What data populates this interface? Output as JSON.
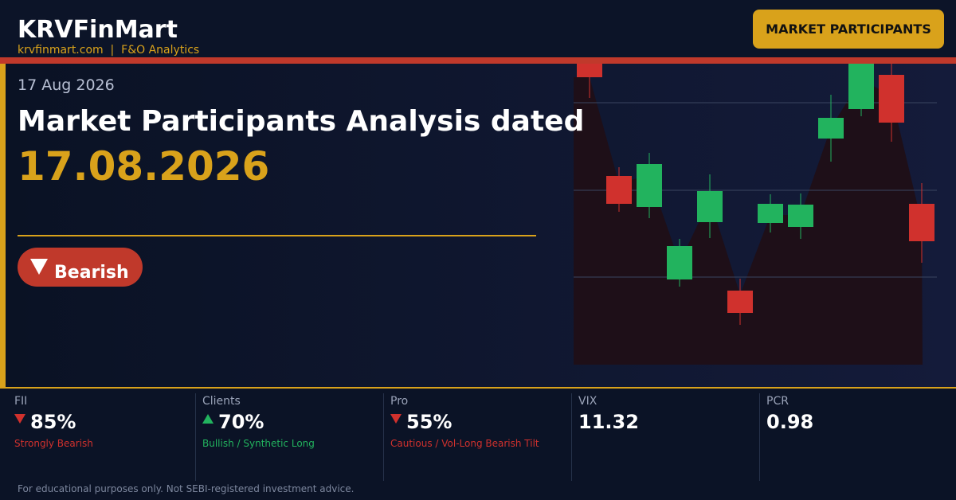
{
  "header": {
    "brand": "KRVFinMart",
    "subtitle": "krvfinmart.com  |  F&O Analytics",
    "button": "MARKET PARTICIPANTS"
  },
  "hero": {
    "date": "17 Aug 2026",
    "headline": "Market Participants Analysis dated",
    "headline_date": "17.08.2026",
    "badge": "Bearish"
  },
  "stats": [
    {
      "label": "FII",
      "value": "85%",
      "note": "Strongly Bearish"
    },
    {
      "label": "Clients",
      "value": "70%",
      "note": "Bullish / Synthetic Long"
    },
    {
      "label": "Pro",
      "value": "55%",
      "note": "Cautious / Vol-Long Bearish Tilt"
    },
    {
      "label": "VIX",
      "value": "11.32"
    },
    {
      "label": "PCR",
      "value": "0.98"
    }
  ],
  "footer": {
    "disclaimer": "For educational purposes only. Not SEBI-registered investment advice."
  }
}
